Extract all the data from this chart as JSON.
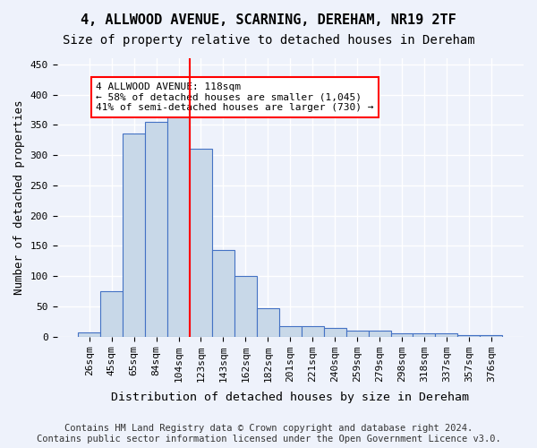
{
  "title": "4, ALLWOOD AVENUE, SCARNING, DEREHAM, NR19 2TF",
  "subtitle": "Size of property relative to detached houses in Dereham",
  "xlabel": "Distribution of detached houses by size in Dereham",
  "ylabel": "Number of detached properties",
  "bar_values": [
    7,
    75,
    335,
    355,
    368,
    310,
    143,
    100,
    47,
    18,
    18,
    14,
    10,
    10,
    5,
    6,
    5,
    3,
    2
  ],
  "bar_labels": [
    "26sqm",
    "45sqm",
    "65sqm",
    "84sqm",
    "104sqm",
    "123sqm",
    "143sqm",
    "162sqm",
    "182sqm",
    "201sqm",
    "221sqm",
    "240sqm",
    "259sqm",
    "279sqm",
    "298sqm",
    "318sqm",
    "337sqm",
    "357sqm",
    "376sqm"
  ],
  "bar_color": "#c8d8e8",
  "bar_edge_color": "#4472c4",
  "property_line_color": "red",
  "annotation_text": "4 ALLWOOD AVENUE: 118sqm\n← 58% of detached houses are smaller (1,045)\n41% of semi-detached houses are larger (730) →",
  "annotation_box_color": "white",
  "annotation_box_edge_color": "red",
  "ylim": [
    0,
    460
  ],
  "yticks": [
    0,
    50,
    100,
    150,
    200,
    250,
    300,
    350,
    400,
    450
  ],
  "footer_line1": "Contains HM Land Registry data © Crown copyright and database right 2024.",
  "footer_line2": "Contains public sector information licensed under the Open Government Licence v3.0.",
  "background_color": "#eef2fb",
  "grid_color": "#ffffff",
  "title_fontsize": 11,
  "subtitle_fontsize": 10,
  "axis_label_fontsize": 9,
  "tick_fontsize": 8,
  "footer_fontsize": 7.5
}
